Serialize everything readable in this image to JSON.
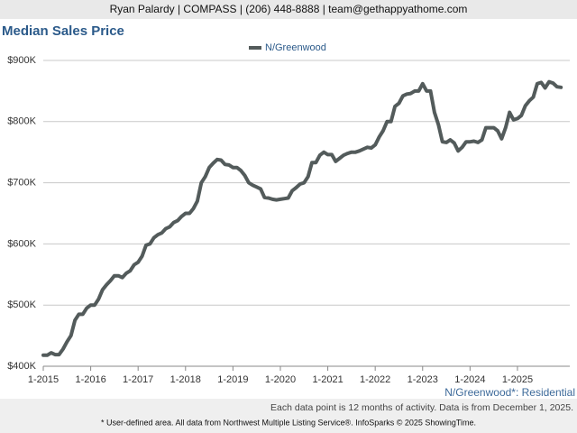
{
  "header": "Ryan Palardy | COMPASS | (206) 448-8888 | team@gethappyathome.com",
  "chart_data": {
    "type": "line",
    "title": "Median Sales Price",
    "categories": [
      "1-2015",
      null,
      null,
      null,
      null,
      null,
      null,
      null,
      null,
      null,
      null,
      null,
      "1-2016",
      null,
      null,
      null,
      null,
      null,
      null,
      null,
      null,
      null,
      null,
      null,
      "1-2017",
      null,
      null,
      null,
      null,
      null,
      null,
      null,
      null,
      null,
      null,
      null,
      "1-2018",
      null,
      null,
      null,
      null,
      null,
      null,
      null,
      null,
      null,
      null,
      null,
      "1-2019",
      null,
      null,
      null,
      null,
      null,
      null,
      null,
      null,
      null,
      null,
      null,
      "1-2020",
      null,
      null,
      null,
      null,
      null,
      null,
      null,
      null,
      null,
      null,
      null,
      "1-2021",
      null,
      null,
      null,
      null,
      null,
      null,
      null,
      null,
      null,
      null,
      null,
      "1-2022",
      null,
      null,
      null,
      null,
      null,
      null,
      null,
      null,
      null,
      null,
      null,
      "1-2023",
      null,
      null,
      null,
      null,
      null,
      null,
      null,
      null,
      null,
      null,
      null,
      "1-2024",
      null,
      null,
      null,
      null,
      null,
      null,
      null,
      null,
      null,
      null,
      null,
      "1-2025",
      null,
      null,
      null,
      null,
      null,
      null,
      null,
      null,
      null,
      null,
      null
    ],
    "series": [
      {
        "name": "N/Greenwood",
        "color": "#535b5b",
        "values": [
          418000,
          418000,
          422000,
          419000,
          419000,
          428000,
          440000,
          450000,
          475000,
          485000,
          485000,
          495000,
          500000,
          500000,
          510000,
          525000,
          533000,
          540000,
          548000,
          548000,
          545000,
          552000,
          556000,
          566000,
          570000,
          580000,
          598000,
          600000,
          610000,
          615000,
          618000,
          625000,
          628000,
          635000,
          638000,
          645000,
          650000,
          650000,
          658000,
          670000,
          700000,
          710000,
          725000,
          732000,
          738000,
          737000,
          730000,
          729000,
          725000,
          725000,
          720000,
          712000,
          700000,
          696000,
          693000,
          690000,
          676000,
          675000,
          673000,
          672000,
          673000,
          674000,
          675000,
          687000,
          692000,
          698000,
          700000,
          710000,
          733000,
          733000,
          745000,
          750000,
          746000,
          746000,
          735000,
          740000,
          745000,
          748000,
          750000,
          750000,
          752000,
          755000,
          758000,
          757000,
          762000,
          775000,
          785000,
          800000,
          800000,
          825000,
          830000,
          842000,
          845000,
          846000,
          850000,
          850000,
          862000,
          850000,
          850000,
          815000,
          795000,
          767000,
          766000,
          770000,
          765000,
          752000,
          758000,
          767000,
          767000,
          768000,
          766000,
          770000,
          790000,
          790000,
          790000,
          785000,
          772000,
          790000,
          815000,
          803000,
          805000,
          810000,
          826000,
          834000,
          840000,
          862000,
          864000,
          855000,
          865000,
          863000,
          857000,
          856000
        ]
      }
    ],
    "ylim": [
      400000,
      900000
    ],
    "yticks": [
      {
        "value": 400000,
        "label": "$400K"
      },
      {
        "value": 500000,
        "label": "$500K"
      },
      {
        "value": 600000,
        "label": "$600K"
      },
      {
        "value": 700000,
        "label": "$700K"
      },
      {
        "value": 800000,
        "label": "$800K"
      },
      {
        "value": 900000,
        "label": "$900K"
      }
    ],
    "grid": true,
    "legend": "top",
    "area_label": "N/Greenwood*: Residential",
    "note": "Each data point is 12 months of activity. Data is from December 1, 2025."
  },
  "footer": "* User-defined area. All data from Northwest Multiple Listing Service®. InfoSparks © 2025 ShowingTime."
}
